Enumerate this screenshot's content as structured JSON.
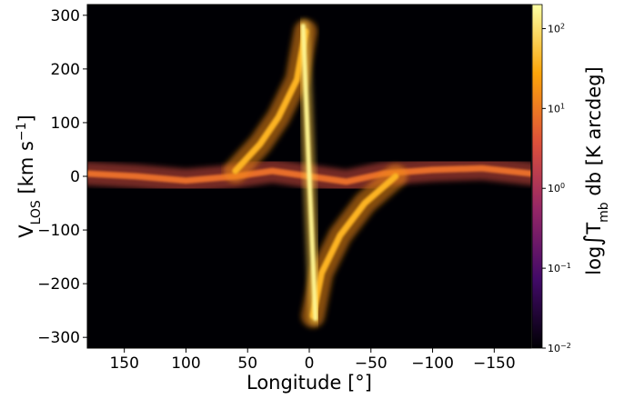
{
  "chart_data": {
    "type": "heatmap",
    "title": "",
    "xlabel": "Longitude [°]",
    "ylabel": {
      "main": "V",
      "sub": "LOS",
      "unit_pre": " [km s",
      "unit_sup": "−1",
      "unit_post": "]"
    },
    "xlim": [
      180,
      -180
    ],
    "ylim": [
      -320,
      320
    ],
    "x_ticks": [
      150,
      100,
      50,
      0,
      -50,
      -100,
      -150
    ],
    "x_tick_labels": [
      "150",
      "100",
      "50",
      "0",
      "−50",
      "−100",
      "−150"
    ],
    "y_ticks": [
      300,
      200,
      100,
      0,
      -100,
      -200,
      -300
    ],
    "y_tick_labels": [
      "300",
      "200",
      "100",
      "0",
      "−100",
      "−200",
      "−300"
    ],
    "colorbar": {
      "label": {
        "pre": "log",
        "integral": "∫",
        "T": "T",
        "sub": "mb",
        "post": " db [K arcdeg]"
      },
      "scale": "log",
      "range": [
        0.01,
        200
      ],
      "ticks": [
        100,
        10,
        1,
        0.1,
        0.01
      ],
      "tick_labels": [
        {
          "base": "10",
          "exp": "2"
        },
        {
          "base": "10",
          "exp": "1"
        },
        {
          "base": "10",
          "exp": "0"
        },
        {
          "base": "10",
          "exp": "−1"
        },
        {
          "base": "10",
          "exp": "−2"
        }
      ],
      "colormap": "inferno",
      "stops": [
        "#000004",
        "#420a68",
        "#932667",
        "#dd513a",
        "#fca50a",
        "#fcffa4"
      ]
    },
    "background": "#000004",
    "features": [
      {
        "name": "disk-band",
        "points": [
          [
            180,
            5
          ],
          [
            140,
            0
          ],
          [
            100,
            -8
          ],
          [
            60,
            0
          ],
          [
            30,
            10
          ],
          [
            0,
            0
          ],
          [
            -30,
            -10
          ],
          [
            -60,
            5
          ],
          [
            -100,
            12
          ],
          [
            -140,
            15
          ],
          [
            -180,
            5
          ]
        ],
        "intensity": 3
      },
      {
        "name": "molecular-ring-positive",
        "points": [
          [
            60,
            10
          ],
          [
            40,
            60
          ],
          [
            25,
            110
          ],
          [
            10,
            180
          ],
          [
            3,
            270
          ]
        ],
        "intensity": 15
      },
      {
        "name": "molecular-ring-negative",
        "points": [
          [
            -3,
            -260
          ],
          [
            -10,
            -180
          ],
          [
            -25,
            -110
          ],
          [
            -45,
            -50
          ],
          [
            -70,
            0
          ]
        ],
        "intensity": 15
      },
      {
        "name": "galactic-center-spike",
        "points": [
          [
            5,
            280
          ],
          [
            0,
            0
          ],
          [
            -5,
            -265
          ]
        ],
        "intensity": 60
      }
    ]
  }
}
